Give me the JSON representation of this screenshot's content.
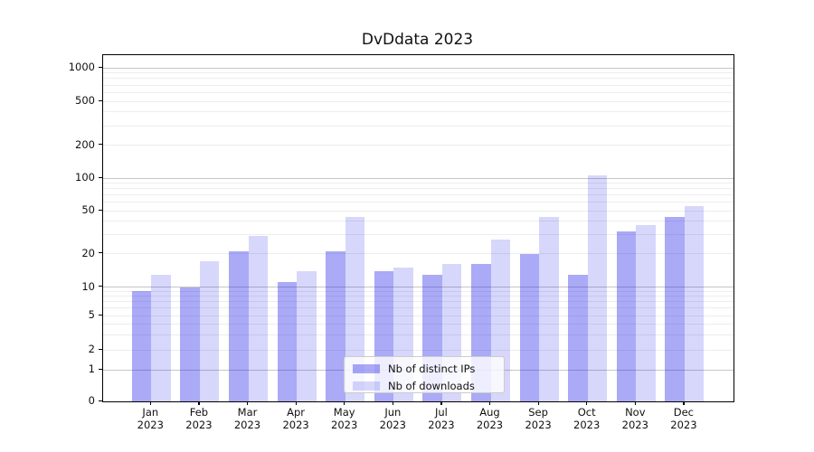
{
  "title": "DvDdata 2023",
  "chart_data": {
    "type": "bar",
    "title": "DvDdata 2023",
    "categories": [
      "Jan 2023",
      "Feb 2023",
      "Mar 2023",
      "Apr 2023",
      "May 2023",
      "Jun 2023",
      "Jul 2023",
      "Aug 2023",
      "Sep 2023",
      "Oct 2023",
      "Nov 2023",
      "Dec 2023"
    ],
    "months": [
      "Jan",
      "Feb",
      "Mar",
      "Apr",
      "May",
      "Jun",
      "Jul",
      "Aug",
      "Sep",
      "Oct",
      "Nov",
      "Dec"
    ],
    "year": "2023",
    "series": [
      {
        "name": "Nb of distinct IPs",
        "values": [
          9,
          10,
          21,
          11,
          21,
          14,
          13,
          16,
          20,
          13,
          32,
          44
        ],
        "color_effective": "#aaaaf4",
        "color_rgba": "rgba(0,0,230,0.335)"
      },
      {
        "name": "Nb of downloads",
        "values": [
          13,
          17,
          29,
          14,
          44,
          15,
          16,
          27,
          44,
          105,
          37,
          55
        ],
        "color_effective": "#d9d9f9",
        "color_rgba": "rgba(0,0,230,0.155)"
      }
    ],
    "xlabel": "",
    "ylabel": "",
    "yscale": "symlog",
    "yticks": [
      0,
      1,
      2,
      5,
      10,
      20,
      50,
      100,
      200,
      500,
      1000
    ],
    "ylim": [
      0,
      1400
    ],
    "grid": "horizontal, major and minor",
    "legend_position": "lower center"
  }
}
